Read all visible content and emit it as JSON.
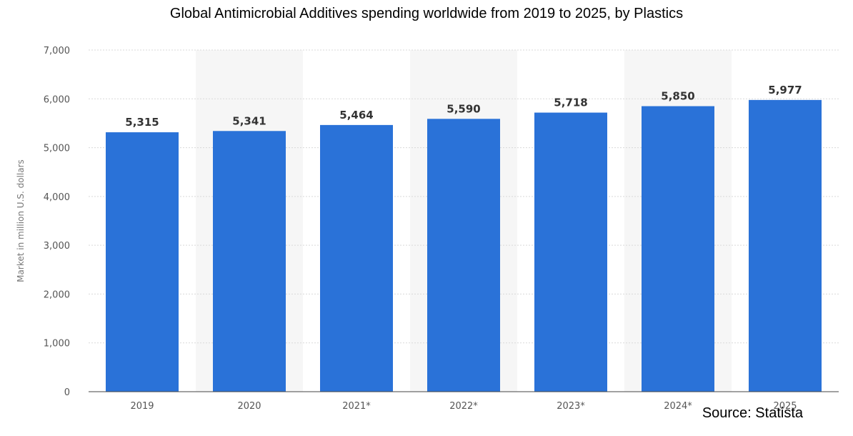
{
  "chart_data": {
    "type": "bar",
    "title": "Global Antimicrobial Additives spending worldwide from 2019 to 2025, by Plastics",
    "ylabel": "Market in million U.S. dollars",
    "xlabel": "",
    "categories": [
      "2019",
      "2020",
      "2021*",
      "2022*",
      "2023*",
      "2024*",
      "2025"
    ],
    "values": [
      5315,
      5341,
      5464,
      5590,
      5718,
      5850,
      5977
    ],
    "value_labels": [
      "5,315",
      "5,341",
      "5,464",
      "5,590",
      "5,718",
      "5,850",
      "5,977"
    ],
    "yticks": [
      0,
      1000,
      2000,
      3000,
      4000,
      5000,
      6000,
      7000
    ],
    "ytick_labels": [
      "0",
      "1,000",
      "2,000",
      "3,000",
      "4,000",
      "5,000",
      "6,000",
      "7,000"
    ],
    "ylim": [
      0,
      7000
    ],
    "grid": true,
    "bar_color": "#2a72d8",
    "source": "Source: Statista"
  }
}
